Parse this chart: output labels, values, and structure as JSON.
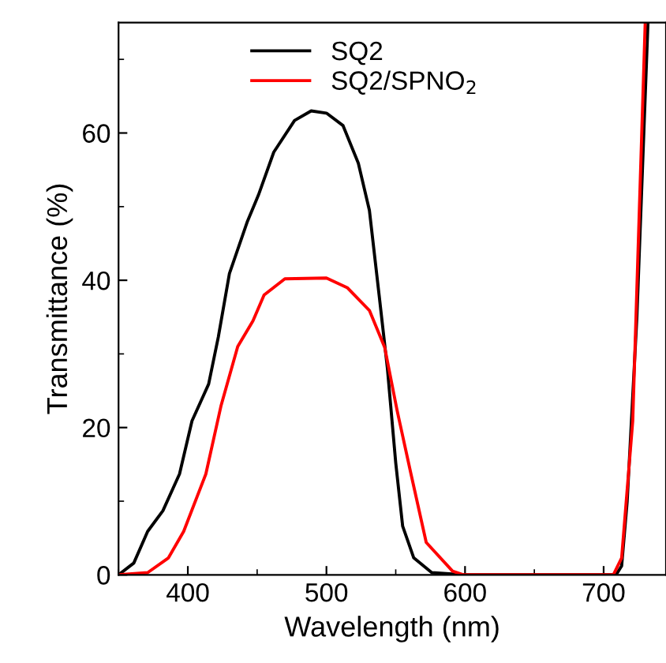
{
  "chart_data": {
    "type": "line",
    "xlabel": "Wavelength (nm)",
    "ylabel": "Transmittance (%)",
    "xlim": [
      350,
      745
    ],
    "ylim": [
      0,
      75
    ],
    "xticks": [
      400,
      500,
      600,
      700
    ],
    "yticks": [
      0,
      20,
      40,
      60
    ],
    "legend": "top",
    "grid": false,
    "marker": "none",
    "line_style": "solid",
    "series": [
      {
        "name": "SQ2",
        "color": "#000000",
        "x": [
          350,
          361,
          371,
          382,
          394,
          403,
          415,
          422,
          430,
          443,
          451,
          462,
          477,
          489,
          500,
          512,
          523,
          531,
          538,
          544,
          550,
          555,
          563,
          576,
          599,
          709,
          713,
          717,
          724,
          732
        ],
        "values": [
          0,
          1.6,
          5.9,
          8.7,
          13.7,
          20.9,
          25.9,
          32.3,
          40.9,
          48,
          51.6,
          57.4,
          61.7,
          63,
          62.7,
          61,
          55.9,
          49.5,
          38,
          28,
          15.2,
          6.6,
          2.3,
          0.3,
          0,
          0,
          1.2,
          10,
          35,
          75
        ]
      },
      {
        "name": "SQ2/SPNO$_{2}$",
        "color": "#ff0000",
        "x": [
          350,
          371,
          386,
          397,
          413,
          424,
          436,
          447,
          455,
          470,
          500,
          515,
          531,
          542,
          551,
          561,
          572,
          591,
          599,
          707,
          713,
          721,
          730
        ],
        "values": [
          0,
          0.3,
          2.3,
          5.9,
          13.7,
          23,
          31,
          34.5,
          38,
          40.2,
          40.3,
          39,
          35.9,
          30.9,
          22.3,
          13.7,
          4.4,
          0.5,
          0,
          0,
          2.3,
          20.9,
          75
        ]
      }
    ]
  }
}
